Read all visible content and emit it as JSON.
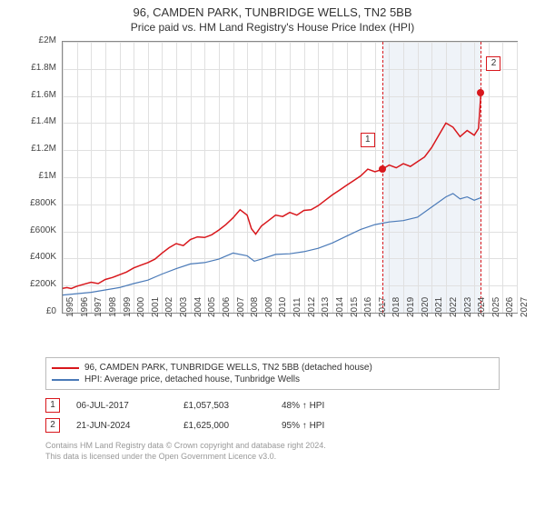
{
  "title_line1": "96, CAMDEN PARK, TUNBRIDGE WELLS, TN2 5BB",
  "title_line2": "Price paid vs. HM Land Registry's House Price Index (HPI)",
  "chart": {
    "type": "line",
    "background_color": "#ffffff",
    "grid_color": "#e0e0e0",
    "border_color": "#888888",
    "shaded_band_color": "#e8eef5",
    "shaded_band_start_year": 2017.5,
    "shaded_band_end_year": 2024.5,
    "x_range": [
      1995,
      2027
    ],
    "y_range": [
      0,
      2000000
    ],
    "y_ticks": [
      0,
      200000,
      400000,
      600000,
      800000,
      1000000,
      1200000,
      1400000,
      1600000,
      1800000,
      2000000
    ],
    "y_tick_labels": [
      "£0",
      "£200K",
      "£400K",
      "£600K",
      "£800K",
      "£1M",
      "£1.2M",
      "£1.4M",
      "£1.6M",
      "£1.8M",
      "£2M"
    ],
    "x_ticks": [
      1995,
      1996,
      1997,
      1998,
      1999,
      2000,
      2001,
      2002,
      2003,
      2004,
      2005,
      2006,
      2007,
      2008,
      2009,
      2010,
      2011,
      2012,
      2013,
      2014,
      2015,
      2016,
      2017,
      2018,
      2019,
      2020,
      2021,
      2022,
      2023,
      2024,
      2025,
      2026,
      2027
    ],
    "tick_fontsize": 10,
    "series": [
      {
        "name": "96, CAMDEN PARK, TUNBRIDGE WELLS, TN2 5BB (detached house)",
        "color": "#d8171c",
        "line_width": 1.5,
        "points": [
          [
            1995,
            180000
          ],
          [
            1995.3,
            185000
          ],
          [
            1995.6,
            178000
          ],
          [
            1996,
            195000
          ],
          [
            1996.5,
            210000
          ],
          [
            1997,
            225000
          ],
          [
            1997.5,
            215000
          ],
          [
            1998,
            245000
          ],
          [
            1998.5,
            260000
          ],
          [
            1999,
            280000
          ],
          [
            1999.5,
            300000
          ],
          [
            2000,
            330000
          ],
          [
            2000.5,
            350000
          ],
          [
            2001,
            370000
          ],
          [
            2001.5,
            395000
          ],
          [
            2002,
            440000
          ],
          [
            2002.5,
            480000
          ],
          [
            2003,
            510000
          ],
          [
            2003.5,
            495000
          ],
          [
            2004,
            540000
          ],
          [
            2004.5,
            560000
          ],
          [
            2005,
            555000
          ],
          [
            2005.5,
            575000
          ],
          [
            2006,
            610000
          ],
          [
            2006.5,
            650000
          ],
          [
            2007,
            700000
          ],
          [
            2007.5,
            760000
          ],
          [
            2008,
            720000
          ],
          [
            2008.3,
            620000
          ],
          [
            2008.6,
            580000
          ],
          [
            2009,
            640000
          ],
          [
            2009.5,
            680000
          ],
          [
            2010,
            720000
          ],
          [
            2010.5,
            710000
          ],
          [
            2011,
            740000
          ],
          [
            2011.5,
            720000
          ],
          [
            2012,
            755000
          ],
          [
            2012.5,
            760000
          ],
          [
            2013,
            790000
          ],
          [
            2013.5,
            830000
          ],
          [
            2014,
            870000
          ],
          [
            2014.5,
            905000
          ],
          [
            2015,
            940000
          ],
          [
            2015.5,
            975000
          ],
          [
            2016,
            1010000
          ],
          [
            2016.5,
            1060000
          ],
          [
            2017,
            1040000
          ],
          [
            2017.5,
            1057000
          ],
          [
            2018,
            1090000
          ],
          [
            2018.5,
            1070000
          ],
          [
            2019,
            1100000
          ],
          [
            2019.5,
            1080000
          ],
          [
            2020,
            1115000
          ],
          [
            2020.5,
            1150000
          ],
          [
            2021,
            1220000
          ],
          [
            2021.5,
            1310000
          ],
          [
            2022,
            1400000
          ],
          [
            2022.5,
            1370000
          ],
          [
            2023,
            1300000
          ],
          [
            2023.5,
            1345000
          ],
          [
            2024,
            1310000
          ],
          [
            2024.3,
            1360000
          ],
          [
            2024.47,
            1625000
          ]
        ]
      },
      {
        "name": "HPI: Average price, detached house, Tunbridge Wells",
        "color": "#4a7ab8",
        "line_width": 1.2,
        "points": [
          [
            1995,
            130000
          ],
          [
            1996,
            140000
          ],
          [
            1997,
            150000
          ],
          [
            1998,
            168000
          ],
          [
            1999,
            185000
          ],
          [
            2000,
            215000
          ],
          [
            2001,
            240000
          ],
          [
            2002,
            285000
          ],
          [
            2003,
            325000
          ],
          [
            2004,
            360000
          ],
          [
            2005,
            370000
          ],
          [
            2006,
            395000
          ],
          [
            2007,
            440000
          ],
          [
            2008,
            420000
          ],
          [
            2008.5,
            380000
          ],
          [
            2009,
            395000
          ],
          [
            2010,
            430000
          ],
          [
            2011,
            435000
          ],
          [
            2012,
            450000
          ],
          [
            2013,
            475000
          ],
          [
            2014,
            515000
          ],
          [
            2015,
            565000
          ],
          [
            2016,
            615000
          ],
          [
            2017,
            650000
          ],
          [
            2018,
            670000
          ],
          [
            2019,
            680000
          ],
          [
            2020,
            705000
          ],
          [
            2021,
            780000
          ],
          [
            2022,
            855000
          ],
          [
            2022.5,
            880000
          ],
          [
            2023,
            840000
          ],
          [
            2023.5,
            855000
          ],
          [
            2024,
            830000
          ],
          [
            2024.47,
            850000
          ]
        ]
      }
    ],
    "transactions": [
      {
        "index": 1,
        "year": 2017.51,
        "value": 1057503,
        "date": "06-JUL-2017",
        "price": "£1,057,503",
        "pct": "48% ↑ HPI",
        "marker_color": "#d8171c"
      },
      {
        "index": 2,
        "year": 2024.47,
        "value": 1625000,
        "date": "21-JUN-2024",
        "price": "£1,625,000",
        "pct": "95% ↑ HPI",
        "marker_color": "#d8171c"
      }
    ]
  },
  "legend": {
    "border_color": "#bbbbbb"
  },
  "footer_line1": "Contains HM Land Registry data © Crown copyright and database right 2024.",
  "footer_line2": "This data is licensed under the Open Government Licence v3.0."
}
